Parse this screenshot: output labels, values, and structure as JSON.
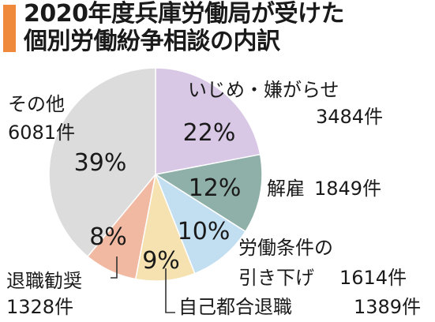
{
  "title": {
    "line1": "2020年度兵庫労働局が受けた",
    "line2": "個別労働紛争相談の内訳"
  },
  "chart_data": {
    "type": "pie",
    "title": "2020年度兵庫労働局が受けた個別労働紛争相談の内訳",
    "start": "12 o'clock, clockwise",
    "slices": [
      {
        "label": "いじめ・嫌がらせ",
        "count": "3484件",
        "percent": 22,
        "percent_text": "22%",
        "color": "#d8c8e6"
      },
      {
        "label": "解雇",
        "count": "1849件",
        "percent": 12,
        "percent_text": "12%",
        "color": "#8fb0a8"
      },
      {
        "label": "労働条件の引き下げ",
        "count": "1614件",
        "percent": 10,
        "percent_text": "10%",
        "color": "#c2dff2"
      },
      {
        "label": "自己都合退職",
        "count": "1389件",
        "percent": 9,
        "percent_text": "9%",
        "color": "#f5e2b0"
      },
      {
        "label": "退職勧奨",
        "count": "1328件",
        "percent": 8,
        "percent_text": "8%",
        "color": "#f1b9a2"
      },
      {
        "label": "その他",
        "count": "6081件",
        "percent": 39,
        "percent_text": "39%",
        "color": "#dcdcdc"
      }
    ]
  },
  "labels": {
    "ijime": {
      "name": "いじめ・嫌がらせ",
      "count": "3484件"
    },
    "kaiko": {
      "name": "解雇",
      "count": "1849件"
    },
    "roudou_line1": "労働条件の",
    "roudou_line2": "引き下げ",
    "roudou_count": "1614件",
    "jiko": {
      "name": "自己都合退職",
      "count": "1389件"
    },
    "taishoku": {
      "name": "退職勧奨",
      "count": "1328件"
    },
    "sonota": {
      "name": "その他",
      "count": "6081件"
    }
  }
}
